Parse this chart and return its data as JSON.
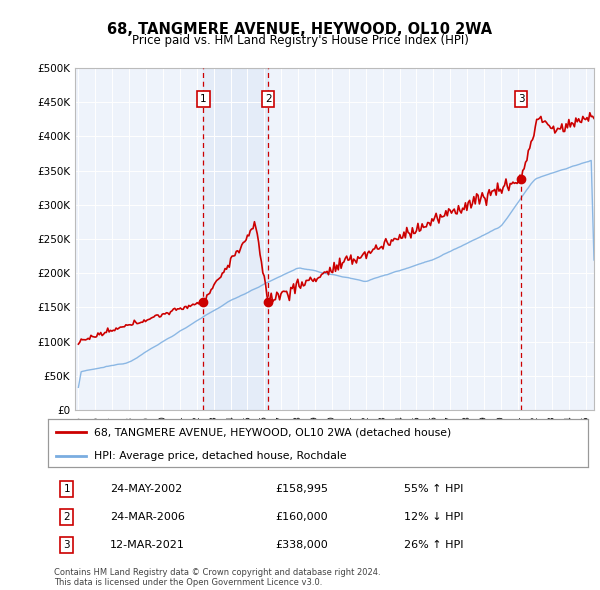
{
  "title": "68, TANGMERE AVENUE, HEYWOOD, OL10 2WA",
  "subtitle": "Price paid vs. HM Land Registry's House Price Index (HPI)",
  "ylim": [
    0,
    500000
  ],
  "yticks": [
    0,
    50000,
    100000,
    150000,
    200000,
    250000,
    300000,
    350000,
    400000,
    450000,
    500000
  ],
  "ytick_labels": [
    "£0",
    "£50K",
    "£100K",
    "£150K",
    "£200K",
    "£250K",
    "£300K",
    "£350K",
    "£400K",
    "£450K",
    "£500K"
  ],
  "sales": [
    {
      "index": 1,
      "date": "24-MAY-2002",
      "year": 2002.39,
      "price": 158995,
      "pct": "55%",
      "dir": "↑"
    },
    {
      "index": 2,
      "date": "24-MAR-2006",
      "year": 2006.23,
      "price": 160000,
      "pct": "12%",
      "dir": "↓"
    },
    {
      "index": 3,
      "date": "12-MAR-2021",
      "year": 2021.19,
      "price": 338000,
      "pct": "26%",
      "dir": "↑"
    }
  ],
  "legend_property_label": "68, TANGMERE AVENUE, HEYWOOD, OL10 2WA (detached house)",
  "legend_hpi_label": "HPI: Average price, detached house, Rochdale",
  "property_color": "#cc0000",
  "hpi_color": "#7aade0",
  "vline_color": "#cc0000",
  "sale_box_color": "#cc0000",
  "footnote": "Contains HM Land Registry data © Crown copyright and database right 2024.\nThis data is licensed under the Open Government Licence v3.0.",
  "plot_bg_color": "#eef3fb"
}
